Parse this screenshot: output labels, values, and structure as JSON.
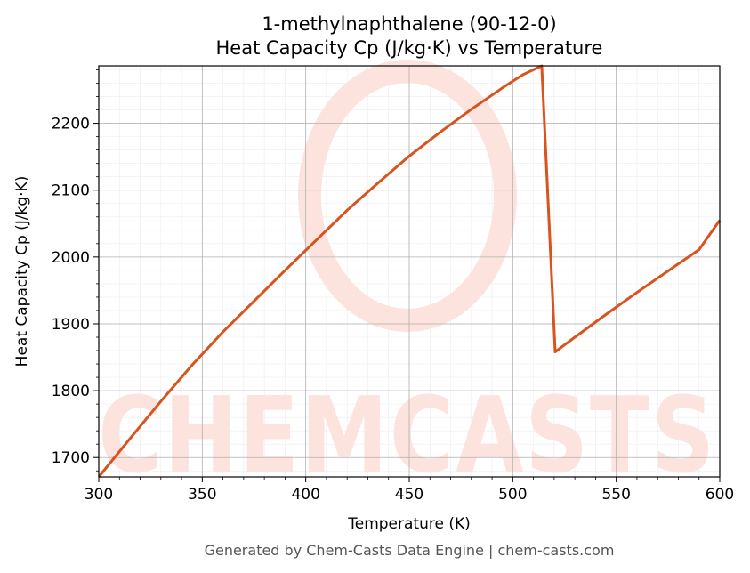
{
  "chart_data": {
    "type": "line",
    "title": "1-methylnaphthalene (90-12-0)",
    "subtitle": "Heat Capacity Cp (J/kg·K) vs Temperature",
    "xlabel": "Temperature (K)",
    "ylabel": "Heat Capacity Cp (J/kg·K)",
    "xlim": [
      300,
      600
    ],
    "ylim": [
      1671,
      2286
    ],
    "x_ticks": [
      300,
      350,
      400,
      450,
      500,
      550,
      600
    ],
    "y_ticks": [
      1700,
      1800,
      1900,
      2000,
      2100,
      2200
    ],
    "grid": true,
    "line_color": "#d9531e",
    "series": [
      {
        "x": [
          300,
          315,
          330,
          345,
          360,
          375,
          390,
          405,
          420,
          435,
          450,
          465,
          480,
          495,
          505,
          514,
          520.5,
          530,
          545,
          560,
          575,
          590,
          600
        ],
        "y": [
          1671,
          1728,
          1784,
          1838,
          1888,
          1934,
          1980,
          2025,
          2070,
          2111,
          2151,
          2187,
          2221,
          2253,
          2273,
          2286,
          1858,
          1880,
          1914,
          1947,
          1979,
          2011,
          2055
        ]
      }
    ]
  },
  "watermark": {
    "text": "CHEMCASTS",
    "color": "#fde3dd"
  },
  "footer": "Generated by Chem-Casts Data Engine | chem-casts.com"
}
